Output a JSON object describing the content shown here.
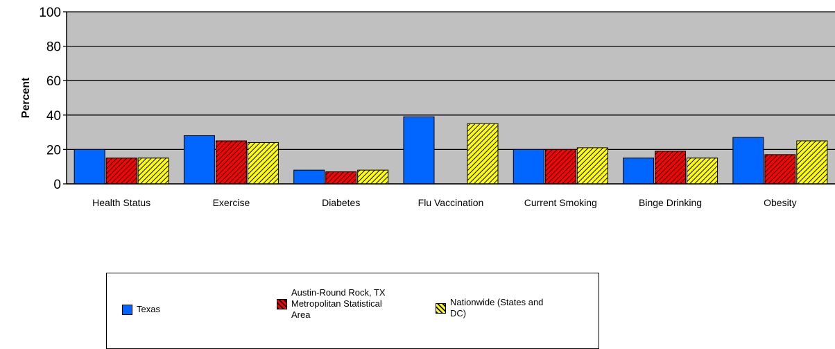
{
  "chart_data": {
    "type": "bar",
    "title": "",
    "xlabel": "",
    "ylabel": "Percent",
    "ylim": [
      0,
      100
    ],
    "yticks": [
      0,
      20,
      40,
      60,
      80,
      100
    ],
    "grid": true,
    "legend_position": "bottom",
    "categories": [
      "Health Status",
      "Exercise",
      "Diabetes",
      "Flu Vaccination",
      "Current Smoking",
      "Binge Drinking",
      "Obesity"
    ],
    "series": [
      {
        "name": "Texas",
        "color": "#0066ff",
        "pattern": "solid",
        "values": [
          20,
          28,
          8,
          39,
          20,
          15,
          27
        ]
      },
      {
        "name": "Austin-Round Rock, TX\nMetropolitan Statistical\nArea",
        "color": "#ff0000",
        "pattern": "diagonal-hatch",
        "values": [
          15,
          25,
          7,
          null,
          20,
          19,
          17
        ]
      },
      {
        "name": "Nationwide (States and\nDC)",
        "color": "#ffff00",
        "pattern": "diagonal-hatch",
        "values": [
          15,
          24,
          8,
          35,
          21,
          15,
          25
        ]
      }
    ],
    "plot_background": "#c0c0c0"
  }
}
